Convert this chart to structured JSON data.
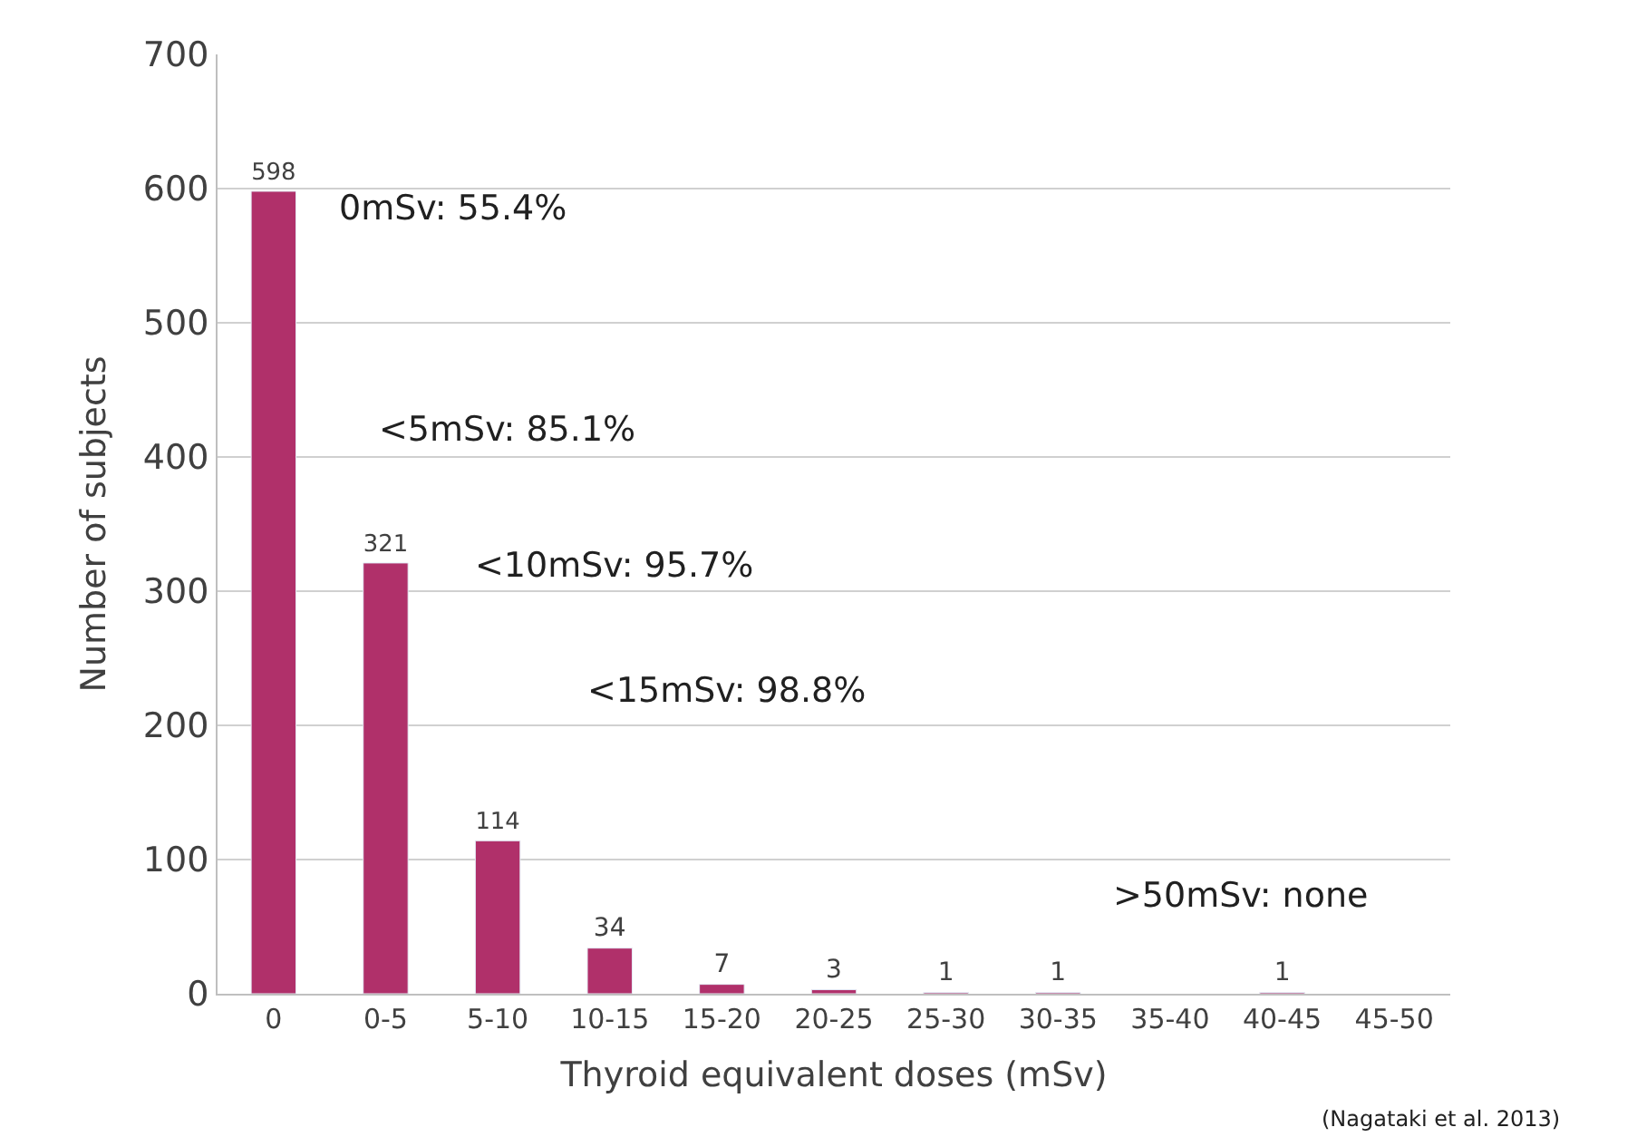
{
  "chart_data": {
    "type": "bar",
    "xlabel": "Thyroid equivalent doses (mSv)",
    "ylabel": "Number of subjects",
    "categories": [
      "0",
      "0-5",
      "5-10",
      "10-15",
      "15-20",
      "20-25",
      "25-30",
      "30-35",
      "35-40",
      "40-45",
      "45-50"
    ],
    "values": [
      598,
      321,
      114,
      34,
      7,
      3,
      1,
      1,
      null,
      1,
      null
    ],
    "value_labels": [
      "598",
      "321",
      "114",
      "34",
      "7",
      "3",
      "1",
      "1",
      null,
      "1",
      null
    ],
    "color": "#b0306a",
    "ylim": [
      0,
      700
    ],
    "yticks": [
      0,
      100,
      200,
      300,
      400,
      500,
      600,
      700
    ],
    "grid": "y",
    "legend": false,
    "annotations": [
      "0mSv: 55.4%",
      "<5mSv: 85.1%",
      "<10mSv: 95.7%",
      "<15mSv: 98.8%",
      ">50mSv: none",
      "(Nagataki et al. 2013)"
    ]
  }
}
